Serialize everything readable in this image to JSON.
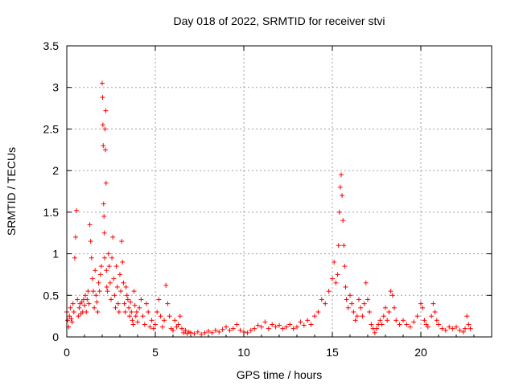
{
  "chart_data": {
    "type": "scatter",
    "title": "Day 018 of 2022, SRMTID for receiver stvi",
    "xlabel": "GPS time / hours",
    "ylabel": "SRMTID / TECUs",
    "xlim": [
      0,
      24
    ],
    "ylim": [
      0,
      3.5
    ],
    "xticks": [
      0,
      5,
      10,
      15,
      20
    ],
    "yticks": [
      0,
      0.5,
      1,
      1.5,
      2,
      2.5,
      3,
      3.5
    ],
    "xtick_labels": [
      "0",
      "5",
      "10",
      "15",
      "20"
    ],
    "ytick_labels": [
      "0",
      "0.5",
      "1",
      "1.5",
      "2",
      "2.5",
      "3",
      "3.5"
    ],
    "grid": true,
    "marker": "+",
    "color": "#ff0000",
    "series": [
      {
        "name": "stvi",
        "points": [
          [
            0.0,
            0.3
          ],
          [
            0.05,
            0.2
          ],
          [
            0.1,
            0.12
          ],
          [
            0.15,
            0.25
          ],
          [
            0.2,
            0.35
          ],
          [
            0.25,
            0.22
          ],
          [
            0.3,
            0.18
          ],
          [
            0.35,
            0.4
          ],
          [
            0.4,
            0.3
          ],
          [
            0.45,
            0.95
          ],
          [
            0.5,
            1.2
          ],
          [
            0.55,
            1.52
          ],
          [
            0.6,
            0.45
          ],
          [
            0.65,
            0.25
          ],
          [
            0.7,
            0.35
          ],
          [
            0.75,
            0.4
          ],
          [
            0.8,
            0.28
          ],
          [
            0.85,
            0.42
          ],
          [
            0.9,
            0.3
          ],
          [
            0.95,
            0.45
          ],
          [
            1.0,
            0.38
          ],
          [
            1.05,
            0.5
          ],
          [
            1.1,
            0.3
          ],
          [
            1.15,
            0.45
          ],
          [
            1.2,
            0.55
          ],
          [
            1.25,
            0.4
          ],
          [
            1.3,
            1.35
          ],
          [
            1.35,
            1.15
          ],
          [
            1.4,
            0.95
          ],
          [
            1.45,
            0.7
          ],
          [
            1.5,
            0.55
          ],
          [
            1.55,
            0.35
          ],
          [
            1.6,
            0.8
          ],
          [
            1.65,
            0.5
          ],
          [
            1.7,
            0.42
          ],
          [
            1.75,
            0.3
          ],
          [
            1.8,
            0.65
          ],
          [
            1.85,
            0.55
          ],
          [
            1.9,
            0.75
          ],
          [
            1.95,
            0.85
          ],
          [
            2.0,
            3.05
          ],
          [
            2.02,
            2.88
          ],
          [
            2.04,
            2.55
          ],
          [
            2.06,
            2.3
          ],
          [
            2.08,
            1.6
          ],
          [
            2.1,
            1.45
          ],
          [
            2.12,
            1.25
          ],
          [
            2.14,
            0.95
          ],
          [
            2.16,
            2.5
          ],
          [
            2.18,
            2.25
          ],
          [
            2.2,
            2.72
          ],
          [
            2.22,
            1.85
          ],
          [
            2.24,
            0.8
          ],
          [
            2.26,
            0.6
          ],
          [
            2.3,
            0.55
          ],
          [
            2.35,
            1.0
          ],
          [
            2.4,
            0.85
          ],
          [
            2.45,
            0.65
          ],
          [
            2.5,
            0.45
          ],
          [
            2.55,
            0.95
          ],
          [
            2.6,
            1.2
          ],
          [
            2.65,
            0.7
          ],
          [
            2.7,
            0.5
          ],
          [
            2.75,
            0.35
          ],
          [
            2.8,
            0.85
          ],
          [
            2.85,
            0.6
          ],
          [
            2.9,
            0.4
          ],
          [
            2.95,
            0.3
          ],
          [
            3.0,
            0.75
          ],
          [
            3.05,
            0.55
          ],
          [
            3.1,
            1.15
          ],
          [
            3.15,
            0.9
          ],
          [
            3.2,
            0.65
          ],
          [
            3.25,
            0.4
          ],
          [
            3.3,
            0.3
          ],
          [
            3.35,
            0.6
          ],
          [
            3.4,
            0.5
          ],
          [
            3.45,
            0.45
          ],
          [
            3.5,
            0.35
          ],
          [
            3.55,
            0.25
          ],
          [
            3.6,
            0.42
          ],
          [
            3.65,
            0.3
          ],
          [
            3.7,
            0.2
          ],
          [
            3.75,
            0.15
          ],
          [
            3.8,
            0.55
          ],
          [
            3.85,
            0.38
          ],
          [
            3.9,
            0.25
          ],
          [
            3.95,
            0.3
          ],
          [
            4.0,
            0.18
          ],
          [
            4.1,
            0.35
          ],
          [
            4.2,
            0.45
          ],
          [
            4.3,
            0.25
          ],
          [
            4.4,
            0.15
          ],
          [
            4.5,
            0.4
          ],
          [
            4.6,
            0.3
          ],
          [
            4.7,
            0.12
          ],
          [
            4.8,
            0.2
          ],
          [
            4.9,
            0.1
          ],
          [
            5.0,
            0.15
          ],
          [
            5.1,
            0.3
          ],
          [
            5.2,
            0.45
          ],
          [
            5.3,
            0.25
          ],
          [
            5.4,
            0.12
          ],
          [
            5.5,
            0.2
          ],
          [
            5.6,
            0.62
          ],
          [
            5.7,
            0.4
          ],
          [
            5.8,
            0.25
          ],
          [
            5.9,
            0.1
          ],
          [
            6.0,
            0.08
          ],
          [
            6.1,
            0.2
          ],
          [
            6.2,
            0.12
          ],
          [
            6.3,
            0.15
          ],
          [
            6.4,
            0.25
          ],
          [
            6.5,
            0.1
          ],
          [
            6.6,
            0.05
          ],
          [
            6.7,
            0.08
          ],
          [
            6.8,
            0.04
          ],
          [
            6.9,
            0.06
          ],
          [
            7.0,
            0.05
          ],
          [
            7.2,
            0.04
          ],
          [
            7.4,
            0.06
          ],
          [
            7.6,
            0.03
          ],
          [
            7.8,
            0.05
          ],
          [
            8.0,
            0.07
          ],
          [
            8.2,
            0.05
          ],
          [
            8.4,
            0.08
          ],
          [
            8.6,
            0.06
          ],
          [
            8.8,
            0.09
          ],
          [
            9.0,
            0.12
          ],
          [
            9.2,
            0.08
          ],
          [
            9.4,
            0.1
          ],
          [
            9.6,
            0.15
          ],
          [
            9.8,
            0.08
          ],
          [
            10.0,
            0.06
          ],
          [
            10.2,
            0.05
          ],
          [
            10.4,
            0.08
          ],
          [
            10.6,
            0.1
          ],
          [
            10.8,
            0.14
          ],
          [
            11.0,
            0.12
          ],
          [
            11.2,
            0.18
          ],
          [
            11.4,
            0.1
          ],
          [
            11.6,
            0.15
          ],
          [
            11.8,
            0.12
          ],
          [
            12.0,
            0.14
          ],
          [
            12.2,
            0.1
          ],
          [
            12.4,
            0.12
          ],
          [
            12.6,
            0.15
          ],
          [
            12.8,
            0.1
          ],
          [
            13.0,
            0.12
          ],
          [
            13.2,
            0.18
          ],
          [
            13.4,
            0.14
          ],
          [
            13.6,
            0.2
          ],
          [
            13.8,
            0.15
          ],
          [
            14.0,
            0.25
          ],
          [
            14.2,
            0.3
          ],
          [
            14.4,
            0.45
          ],
          [
            14.6,
            0.4
          ],
          [
            14.8,
            0.55
          ],
          [
            15.0,
            0.7
          ],
          [
            15.1,
            0.9
          ],
          [
            15.2,
            0.65
          ],
          [
            15.3,
            0.75
          ],
          [
            15.35,
            1.1
          ],
          [
            15.4,
            1.5
          ],
          [
            15.45,
            1.8
          ],
          [
            15.5,
            1.95
          ],
          [
            15.55,
            1.7
          ],
          [
            15.6,
            1.4
          ],
          [
            15.65,
            1.1
          ],
          [
            15.7,
            0.85
          ],
          [
            15.75,
            0.6
          ],
          [
            15.8,
            0.45
          ],
          [
            15.9,
            0.35
          ],
          [
            16.0,
            0.5
          ],
          [
            16.1,
            0.4
          ],
          [
            16.2,
            0.3
          ],
          [
            16.3,
            0.2
          ],
          [
            16.4,
            0.25
          ],
          [
            16.5,
            0.45
          ],
          [
            16.6,
            0.35
          ],
          [
            16.7,
            0.25
          ],
          [
            16.8,
            0.4
          ],
          [
            16.9,
            0.65
          ],
          [
            17.0,
            0.45
          ],
          [
            17.1,
            0.3
          ],
          [
            17.2,
            0.15
          ],
          [
            17.3,
            0.1
          ],
          [
            17.4,
            0.05
          ],
          [
            17.5,
            0.1
          ],
          [
            17.6,
            0.15
          ],
          [
            17.7,
            0.2
          ],
          [
            17.8,
            0.15
          ],
          [
            17.9,
            0.25
          ],
          [
            18.0,
            0.35
          ],
          [
            18.1,
            0.2
          ],
          [
            18.2,
            0.3
          ],
          [
            18.3,
            0.55
          ],
          [
            18.4,
            0.5
          ],
          [
            18.5,
            0.35
          ],
          [
            18.6,
            0.2
          ],
          [
            18.8,
            0.15
          ],
          [
            19.0,
            0.2
          ],
          [
            19.2,
            0.15
          ],
          [
            19.4,
            0.12
          ],
          [
            19.6,
            0.18
          ],
          [
            19.8,
            0.25
          ],
          [
            20.0,
            0.4
          ],
          [
            20.1,
            0.35
          ],
          [
            20.2,
            0.2
          ],
          [
            20.3,
            0.15
          ],
          [
            20.4,
            0.12
          ],
          [
            20.6,
            0.25
          ],
          [
            20.7,
            0.4
          ],
          [
            20.8,
            0.3
          ],
          [
            20.9,
            0.2
          ],
          [
            21.0,
            0.15
          ],
          [
            21.2,
            0.1
          ],
          [
            21.4,
            0.08
          ],
          [
            21.6,
            0.12
          ],
          [
            21.8,
            0.1
          ],
          [
            22.0,
            0.12
          ],
          [
            22.2,
            0.08
          ],
          [
            22.4,
            0.06
          ],
          [
            22.5,
            0.1
          ],
          [
            22.6,
            0.25
          ],
          [
            22.7,
            0.15
          ],
          [
            22.8,
            0.1
          ]
        ]
      }
    ]
  }
}
